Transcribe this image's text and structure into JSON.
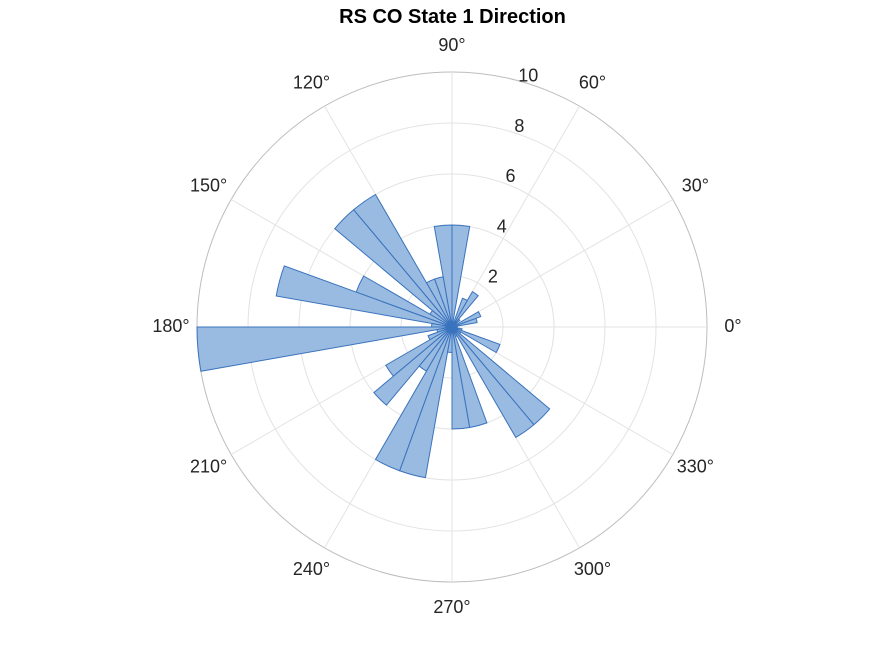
{
  "chart_data": {
    "type": "polar-histogram",
    "title": "RS  CO State 1 Direction",
    "bin_width_deg": 10,
    "rlim": [
      0,
      10
    ],
    "r_ticks": [
      "2",
      "4",
      "6",
      "8",
      "10"
    ],
    "theta_ticks": [
      "0°",
      "30°",
      "60°",
      "90°",
      "120°",
      "150°",
      "180°",
      "210°",
      "240°",
      "270°",
      "300°",
      "330°"
    ],
    "grid": true,
    "bins": [
      {
        "start": 0,
        "end": 10,
        "count": 0.2
      },
      {
        "start": 10,
        "end": 20,
        "count": 1
      },
      {
        "start": 20,
        "end": 30,
        "count": 1.2
      },
      {
        "start": 30,
        "end": 40,
        "count": 0
      },
      {
        "start": 40,
        "end": 50,
        "count": 0.4
      },
      {
        "start": 50,
        "end": 60,
        "count": 1.6
      },
      {
        "start": 60,
        "end": 70,
        "count": 1.2
      },
      {
        "start": 70,
        "end": 80,
        "count": 0
      },
      {
        "start": 80,
        "end": 90,
        "count": 4
      },
      {
        "start": 90,
        "end": 100,
        "count": 4
      },
      {
        "start": 100,
        "end": 110,
        "count": 2
      },
      {
        "start": 110,
        "end": 120,
        "count": 2
      },
      {
        "start": 120,
        "end": 130,
        "count": 6
      },
      {
        "start": 130,
        "end": 140,
        "count": 6
      },
      {
        "start": 140,
        "end": 150,
        "count": 1
      },
      {
        "start": 150,
        "end": 160,
        "count": 4
      },
      {
        "start": 160,
        "end": 170,
        "count": 7
      },
      {
        "start": 170,
        "end": 180,
        "count": 0.8
      },
      {
        "start": 180,
        "end": 190,
        "count": 10
      },
      {
        "start": 190,
        "end": 200,
        "count": 0.6
      },
      {
        "start": 200,
        "end": 210,
        "count": 1
      },
      {
        "start": 210,
        "end": 220,
        "count": 3
      },
      {
        "start": 220,
        "end": 230,
        "count": 4
      },
      {
        "start": 230,
        "end": 240,
        "count": 2
      },
      {
        "start": 240,
        "end": 250,
        "count": 6
      },
      {
        "start": 250,
        "end": 260,
        "count": 6
      },
      {
        "start": 260,
        "end": 270,
        "count": 1
      },
      {
        "start": 270,
        "end": 280,
        "count": 4
      },
      {
        "start": 280,
        "end": 290,
        "count": 4
      },
      {
        "start": 290,
        "end": 300,
        "count": 0.4
      },
      {
        "start": 300,
        "end": 310,
        "count": 5
      },
      {
        "start": 310,
        "end": 320,
        "count": 5
      },
      {
        "start": 320,
        "end": 330,
        "count": 0.4
      },
      {
        "start": 330,
        "end": 340,
        "count": 2
      },
      {
        "start": 340,
        "end": 350,
        "count": 0.4
      },
      {
        "start": 350,
        "end": 360,
        "count": 0.2
      }
    ],
    "colors": {
      "bar_fill": "#99bbe1",
      "bar_edge": "#3a73bd",
      "grid": "#e3e3e3",
      "outer_ring": "#bdbdbd",
      "text": "#262626"
    }
  }
}
